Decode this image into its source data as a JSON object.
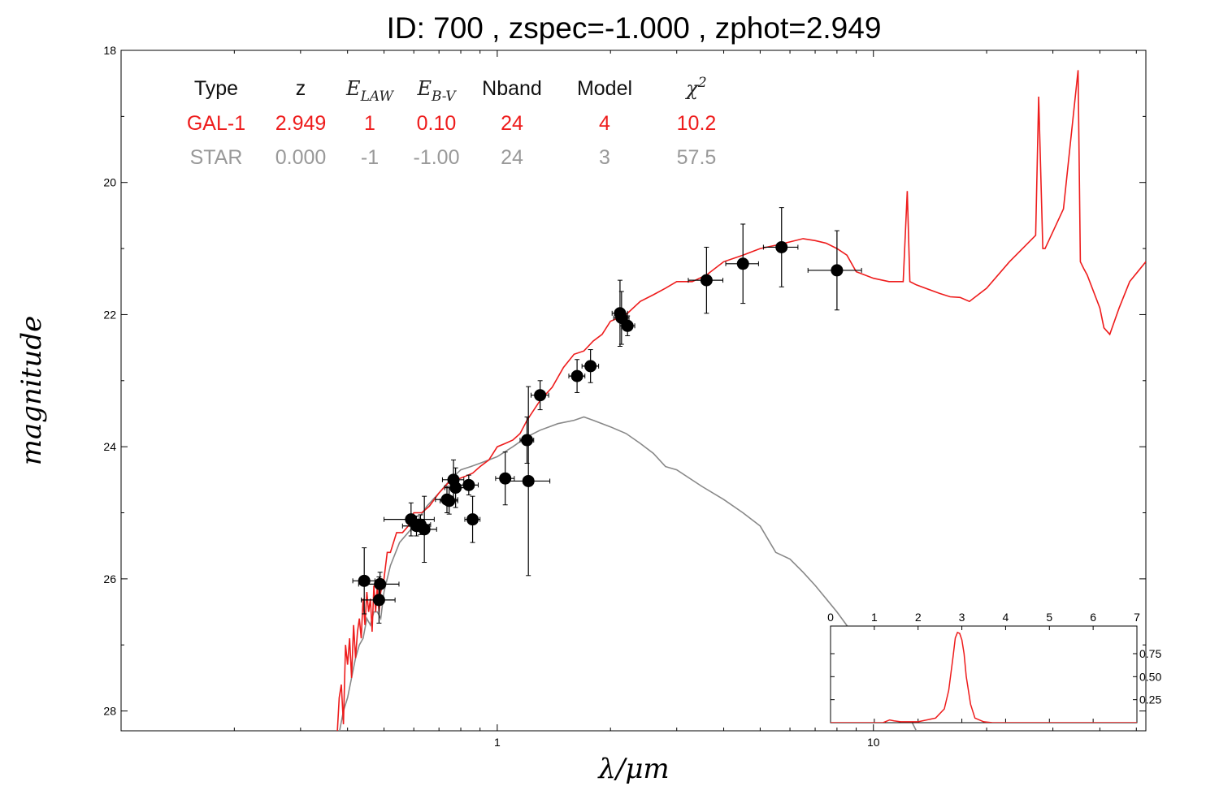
{
  "chart_data": {
    "type": "scatter",
    "title": "ID:  700   , zspec=-1.000 , zphot=2.949",
    "xlabel": "λ/μm",
    "ylabel": "magnitude",
    "xscale": "log",
    "xlim": [
      0.1,
      53
    ],
    "ylim": [
      28.3,
      18
    ],
    "yaxis_inverted": true,
    "x_ticks": [
      1,
      10
    ],
    "x_tick_labels": [
      "1",
      "10"
    ],
    "y_ticks": [
      18,
      20,
      22,
      24,
      26,
      28
    ],
    "y_tick_labels": [
      "18",
      "20",
      "22",
      "24",
      "26",
      "28"
    ],
    "table": {
      "headers": [
        "Type",
        "z",
        "E_LAW",
        "E_B-V",
        "Nband",
        "Model",
        "χ²"
      ],
      "rows": [
        {
          "cells": [
            "GAL-1",
            "2.949",
            "1",
            "0.10",
            "24",
            "4",
            "10.2"
          ],
          "color": "#ee1c1c"
        },
        {
          "cells": [
            "STAR",
            "0.000",
            "-1",
            "-1.00",
            "24",
            "3",
            "57.5"
          ],
          "color": "#999999"
        }
      ]
    },
    "points": [
      {
        "x": 0.443,
        "y": 26.03,
        "xerr": 0.03,
        "yerr": 0.5
      },
      {
        "x": 0.488,
        "y": 26.08,
        "xerr": 0.06,
        "yerr": 0.18
      },
      {
        "x": 0.485,
        "y": 26.32,
        "xerr": 0.05,
        "yerr": 0.35
      },
      {
        "x": 0.59,
        "y": 25.1,
        "xerr": 0.09,
        "yerr": 0.25
      },
      {
        "x": 0.61,
        "y": 25.2,
        "xerr": 0.05,
        "yerr": 0.15
      },
      {
        "x": 0.625,
        "y": 25.18,
        "xerr": 0.04,
        "yerr": 0.15
      },
      {
        "x": 0.64,
        "y": 25.25,
        "xerr": 0.05,
        "yerr": 0.5
      },
      {
        "x": 0.735,
        "y": 24.8,
        "xerr": 0.05,
        "yerr": 0.2
      },
      {
        "x": 0.745,
        "y": 24.82,
        "xerr": 0.04,
        "yerr": 0.2
      },
      {
        "x": 0.765,
        "y": 24.5,
        "xerr": 0.05,
        "yerr": 0.3
      },
      {
        "x": 0.775,
        "y": 24.62,
        "xerr": 0.05,
        "yerr": 0.3
      },
      {
        "x": 0.84,
        "y": 24.58,
        "xerr": 0.05,
        "yerr": 0.15
      },
      {
        "x": 0.86,
        "y": 25.1,
        "xerr": 0.04,
        "yerr": 0.35
      },
      {
        "x": 1.05,
        "y": 24.48,
        "xerr": 0.06,
        "yerr": 0.4
      },
      {
        "x": 1.2,
        "y": 23.9,
        "xerr": 0.05,
        "yerr": 0.35
      },
      {
        "x": 1.21,
        "y": 24.52,
        "xerr": 0.17,
        "yerr": 1.43
      },
      {
        "x": 1.3,
        "y": 23.22,
        "xerr": 0.07,
        "yerr": 0.22
      },
      {
        "x": 1.63,
        "y": 22.93,
        "xerr": 0.08,
        "yerr": 0.25
      },
      {
        "x": 1.77,
        "y": 22.78,
        "xerr": 0.09,
        "yerr": 0.25
      },
      {
        "x": 2.12,
        "y": 21.98,
        "xerr": 0.1,
        "yerr": 0.5
      },
      {
        "x": 2.14,
        "y": 22.05,
        "xerr": 0.1,
        "yerr": 0.4
      },
      {
        "x": 2.22,
        "y": 22.17,
        "xerr": 0.1,
        "yerr": 0.15
      },
      {
        "x": 3.6,
        "y": 21.48,
        "xerr": 0.38,
        "yerr": 0.5
      },
      {
        "x": 4.5,
        "y": 21.23,
        "xerr": 0.45,
        "yerr": 0.6
      },
      {
        "x": 5.7,
        "y": 20.98,
        "xerr": 0.6,
        "yerr": 0.6
      },
      {
        "x": 8.0,
        "y": 21.33,
        "xerr": 1.3,
        "yerr": 0.6
      }
    ],
    "series": [
      {
        "color": "#ee1c1c",
        "x": [
          0.375,
          0.38,
          0.385,
          0.39,
          0.395,
          0.4,
          0.405,
          0.41,
          0.415,
          0.42,
          0.425,
          0.43,
          0.435,
          0.44,
          0.445,
          0.45,
          0.455,
          0.46,
          0.465,
          0.47,
          0.475,
          0.48,
          0.485,
          0.49,
          0.5,
          0.51,
          0.52,
          0.54,
          0.56,
          0.58,
          0.6,
          0.63,
          0.66,
          0.7,
          0.74,
          0.78,
          0.82,
          0.86,
          0.9,
          0.95,
          1.0,
          1.05,
          1.1,
          1.15,
          1.2,
          1.3,
          1.4,
          1.5,
          1.6,
          1.7,
          1.8,
          1.9,
          2.0,
          2.2,
          2.4,
          2.6,
          2.8,
          3.0,
          3.3,
          3.6,
          4.0,
          4.5,
          5.0,
          5.5,
          6.0,
          6.5,
          7.0,
          7.5,
          8.0,
          8.5,
          9.0,
          10.0,
          11.0,
          12.0,
          12.3,
          12.5,
          12.7,
          13.0,
          15.0,
          16.0,
          17.0,
          18.0,
          20.0,
          23.0,
          27.0,
          27.5,
          28.2,
          28.6,
          32.0,
          35.0,
          35.5,
          36.2,
          37.0,
          40.0,
          41.0,
          42.5,
          45.0,
          48.0,
          53.0
        ],
        "y": [
          28.4,
          27.8,
          27.6,
          28.2,
          27.0,
          27.3,
          26.9,
          27.5,
          26.7,
          27.2,
          26.8,
          26.6,
          26.9,
          26.3,
          26.7,
          26.2,
          26.5,
          26.3,
          26.8,
          26.1,
          26.5,
          26.1,
          26.5,
          26.2,
          26.0,
          25.6,
          25.6,
          25.3,
          25.3,
          25.2,
          25.0,
          25.0,
          24.9,
          24.7,
          24.55,
          24.5,
          24.45,
          24.4,
          24.3,
          24.2,
          24.0,
          23.95,
          23.9,
          23.8,
          23.6,
          23.3,
          23.1,
          22.8,
          22.6,
          22.55,
          22.4,
          22.3,
          22.1,
          22.0,
          21.8,
          21.7,
          21.6,
          21.5,
          21.5,
          21.4,
          21.2,
          21.1,
          21.0,
          20.95,
          20.9,
          20.85,
          20.88,
          20.92,
          21.0,
          21.1,
          21.35,
          21.45,
          21.5,
          21.5,
          20.13,
          21.5,
          21.52,
          21.55,
          21.68,
          21.73,
          21.74,
          21.8,
          21.6,
          21.2,
          20.8,
          18.7,
          21.0,
          21.0,
          20.4,
          18.3,
          21.2,
          21.3,
          21.4,
          21.9,
          22.2,
          22.3,
          21.9,
          21.5,
          21.2
        ]
      },
      {
        "color": "#888888",
        "x": [
          0.375,
          0.39,
          0.4,
          0.41,
          0.42,
          0.43,
          0.44,
          0.45,
          0.46,
          0.47,
          0.48,
          0.49,
          0.5,
          0.52,
          0.55,
          0.6,
          0.65,
          0.7,
          0.75,
          0.8,
          0.85,
          0.9,
          0.95,
          1.0,
          1.1,
          1.2,
          1.3,
          1.45,
          1.6,
          1.7,
          1.8,
          2.0,
          2.2,
          2.4,
          2.6,
          2.8,
          3.0,
          3.5,
          4.0,
          4.5,
          5.0,
          5.5,
          6.0,
          6.5,
          7.0,
          8.0,
          9.0,
          10.0,
          12.0,
          13.0
        ],
        "y": [
          28.5,
          28.0,
          27.8,
          27.5,
          27.2,
          27.0,
          26.9,
          26.6,
          26.7,
          26.5,
          26.5,
          26.6,
          26.2,
          25.8,
          25.45,
          25.2,
          24.9,
          24.7,
          24.5,
          24.35,
          24.3,
          24.25,
          24.2,
          24.15,
          24.0,
          23.85,
          23.75,
          23.65,
          23.6,
          23.55,
          23.6,
          23.7,
          23.8,
          23.95,
          24.1,
          24.3,
          24.35,
          24.6,
          24.8,
          25.0,
          25.2,
          25.6,
          25.7,
          25.9,
          26.1,
          26.5,
          26.9,
          27.3,
          27.9,
          28.3
        ]
      }
    ],
    "inset": {
      "type": "line",
      "xlim": [
        0,
        7
      ],
      "ylim": [
        0,
        1.05
      ],
      "x_ticks": [
        0,
        1,
        2,
        3,
        4,
        5,
        6,
        7
      ],
      "x_tick_labels": [
        "0",
        "1",
        "2",
        "3",
        "4",
        "5",
        "6",
        "7"
      ],
      "y_ticks": [
        0.25,
        0.5,
        0.75
      ],
      "y_tick_labels": [
        "0.25",
        "0.50",
        "0.75"
      ],
      "x": [
        0,
        1.2,
        1.35,
        1.45,
        1.6,
        2.0,
        2.4,
        2.6,
        2.7,
        2.8,
        2.85,
        2.9,
        2.95,
        3.0,
        3.05,
        3.1,
        3.2,
        3.3,
        3.5,
        3.7,
        4.0,
        7.0
      ],
      "y": [
        0,
        0,
        0.03,
        0.02,
        0.01,
        0.01,
        0.05,
        0.15,
        0.35,
        0.72,
        0.92,
        0.98,
        0.97,
        0.9,
        0.75,
        0.5,
        0.2,
        0.05,
        0.01,
        0,
        0,
        0
      ],
      "color": "#ee1c1c"
    }
  }
}
